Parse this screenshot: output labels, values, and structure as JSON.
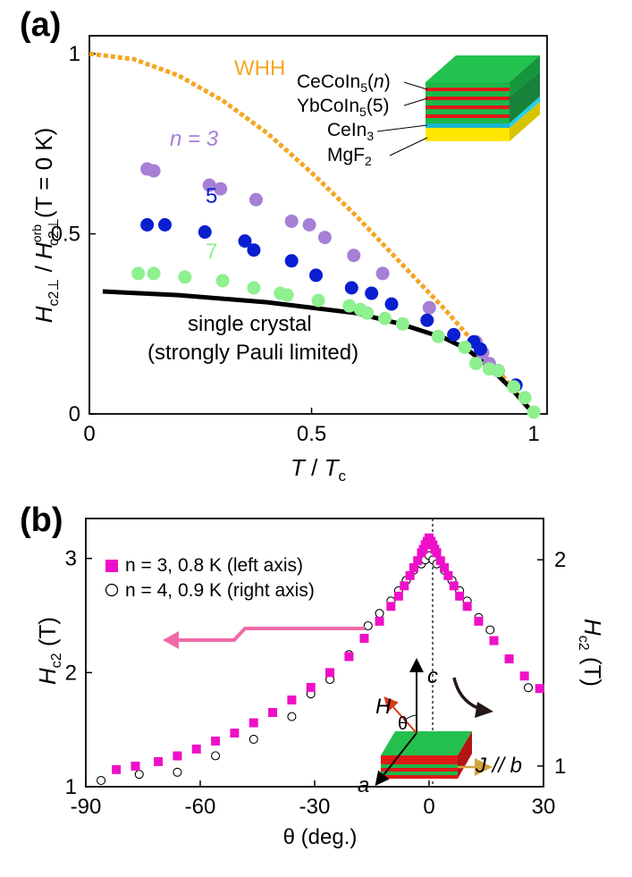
{
  "panels": {
    "a": {
      "label": "(a)",
      "ylabel_parts": [
        "H",
        "c2⊥",
        " / ",
        "H",
        "orb",
        "c2⊥",
        "(T = 0 K)"
      ],
      "xlabel_parts": [
        "T",
        " / ",
        "T",
        "c"
      ],
      "annotations": {
        "whh": "WHH",
        "n3": "n = 3",
        "n5": "5",
        "n7": "7",
        "single_crystal_line1": "single crystal",
        "single_crystal_line2": "(strongly Pauli limited)"
      },
      "inset_labels": {
        "cecoin5": "CeCoIn5(n)",
        "ybcoin5": "YbCoIn5(5)",
        "cein3": "CeIn3",
        "mgf2": "MgF2"
      }
    },
    "b": {
      "label": "(b)",
      "ylabel_left": "Hc2 (T)",
      "ylabel_right": "Hc2 (T)",
      "xlabel": "θ (deg.)",
      "legend": [
        "n = 3, 0.8 K (left axis)",
        "n = 4, 0.9 K (right axis)"
      ],
      "inset_labels": {
        "c": "c",
        "H": "H",
        "theta": "θ",
        "a": "a",
        "J": "J // b"
      }
    }
  },
  "colors": {
    "whh": "#f5a623",
    "n3": "#a67fd6",
    "n5": "#0a1fd0",
    "n7": "#8ef08e",
    "single_crystal": "#000000",
    "magenta": "#ee10c8",
    "green_layer": "#1cb64a",
    "red_layer": "#e01818",
    "cyan_layer": "#22d3ee",
    "yellow_layer": "#ffe600",
    "arrow_pink": "#f06aa8"
  },
  "chart_data": [
    {
      "type": "scatter",
      "title": "",
      "xlabel": "T / Tc",
      "ylabel": "Hc2⊥ / Hc2⊥orb(T = 0 K)",
      "xlim": [
        0,
        1.03
      ],
      "ylim": [
        0,
        1.05
      ],
      "xticks": [
        0,
        0.5,
        1
      ],
      "yticks": [
        0,
        0.5,
        1
      ],
      "xtick_labels": [
        "0",
        "0.5",
        "1"
      ],
      "ytick_labels": [
        "0",
        "0.5",
        "1"
      ],
      "series": [
        {
          "name": "WHH",
          "style": "dotted-line",
          "x": [
            0,
            0.1,
            0.2,
            0.3,
            0.4,
            0.5,
            0.6,
            0.7,
            0.8,
            0.9,
            0.95,
            1.0
          ],
          "y": [
            1.0,
            0.985,
            0.94,
            0.87,
            0.78,
            0.67,
            0.55,
            0.42,
            0.29,
            0.15,
            0.075,
            0.0
          ]
        },
        {
          "name": "single crystal (strongly Pauli limited)",
          "style": "solid-line",
          "x": [
            0.03,
            0.2,
            0.4,
            0.6,
            0.7,
            0.8,
            0.85,
            0.9,
            0.95,
            1.0
          ],
          "y": [
            0.34,
            0.33,
            0.31,
            0.28,
            0.25,
            0.21,
            0.18,
            0.13,
            0.07,
            0.0
          ]
        },
        {
          "name": "n = 3",
          "style": "points",
          "x": [
            0.13,
            0.145,
            0.27,
            0.295,
            0.375,
            0.455,
            0.495,
            0.53,
            0.595,
            0.66,
            0.765,
            0.87,
            0.885,
            0.9
          ],
          "y": [
            0.68,
            0.675,
            0.635,
            0.625,
            0.595,
            0.535,
            0.525,
            0.49,
            0.44,
            0.39,
            0.295,
            0.2,
            0.17,
            0.14
          ]
        },
        {
          "name": "n = 5",
          "style": "points",
          "x": [
            0.13,
            0.17,
            0.26,
            0.35,
            0.37,
            0.455,
            0.51,
            0.59,
            0.635,
            0.68,
            0.76,
            0.82,
            0.865,
            0.88,
            0.92,
            0.96
          ],
          "y": [
            0.525,
            0.525,
            0.505,
            0.48,
            0.455,
            0.425,
            0.385,
            0.35,
            0.335,
            0.305,
            0.26,
            0.22,
            0.2,
            0.18,
            0.12,
            0.08
          ]
        },
        {
          "name": "n = 7",
          "style": "points",
          "x": [
            0.11,
            0.145,
            0.215,
            0.3,
            0.37,
            0.43,
            0.445,
            0.515,
            0.585,
            0.61,
            0.625,
            0.665,
            0.705,
            0.785,
            0.845,
            0.87,
            0.9,
            0.92,
            0.955,
            0.98,
            1.0
          ],
          "y": [
            0.39,
            0.39,
            0.38,
            0.37,
            0.35,
            0.335,
            0.33,
            0.315,
            0.3,
            0.29,
            0.28,
            0.265,
            0.25,
            0.215,
            0.185,
            0.14,
            0.125,
            0.12,
            0.075,
            0.045,
            0.005
          ]
        }
      ]
    },
    {
      "type": "scatter",
      "title": "",
      "xlabel": "θ (deg.)",
      "ylabel": "Hc2 (T)",
      "ylabel_right": "Hc2 (T)",
      "xlim": [
        -90,
        30
      ],
      "ylim": [
        1,
        3.35
      ],
      "ylim_right": [
        0.9,
        2.2
      ],
      "xticks": [
        -90,
        -60,
        -30,
        0,
        30
      ],
      "xtick_labels": [
        "-90",
        "-60",
        "-30",
        "0",
        "30"
      ],
      "yticks": [
        1,
        2,
        3
      ],
      "ytick_labels": [
        "1",
        "2",
        "3"
      ],
      "yticks_right": [
        1,
        2
      ],
      "ytick_labels_right": [
        "1",
        "2"
      ],
      "series": [
        {
          "name": "n = 3, 0.8 K (left axis)",
          "axis": "left",
          "marker": "square",
          "x": [
            -82,
            -77,
            -71,
            -66,
            -61,
            -56,
            -51,
            -46,
            -41,
            -36,
            -31,
            -26,
            -21,
            -17,
            -13,
            -10,
            -8,
            -6.5,
            -5,
            -4,
            -3,
            -2,
            -1.5,
            -1,
            -0.5,
            0,
            0.5,
            1,
            1.5,
            2,
            3,
            4,
            5,
            6.5,
            8,
            10,
            13,
            17,
            21,
            25,
            29
          ],
          "y": [
            1.15,
            1.18,
            1.22,
            1.27,
            1.33,
            1.4,
            1.47,
            1.56,
            1.65,
            1.76,
            1.87,
            2.0,
            2.14,
            2.3,
            2.45,
            2.58,
            2.67,
            2.76,
            2.85,
            2.92,
            2.98,
            3.05,
            3.08,
            3.12,
            3.15,
            3.18,
            3.15,
            3.12,
            3.08,
            3.05,
            2.98,
            2.92,
            2.85,
            2.76,
            2.67,
            2.58,
            2.45,
            2.28,
            2.12,
            1.97,
            1.86
          ]
        },
        {
          "name": "n = 4, 0.9 K (right axis)",
          "axis": "right",
          "marker": "open-circle",
          "x": [
            -86,
            -76,
            -66,
            -56,
            -46,
            -36,
            -31,
            -26,
            -21,
            -16,
            -13,
            -10,
            -8,
            -6,
            -4,
            -2,
            -1,
            0,
            1,
            2,
            4,
            6,
            8,
            10,
            13,
            16,
            21,
            26
          ],
          "y": [
            0.93,
            0.96,
            0.97,
            1.05,
            1.13,
            1.24,
            1.35,
            1.42,
            1.54,
            1.68,
            1.74,
            1.8,
            1.85,
            1.9,
            1.95,
            1.98,
            2.0,
            2.02,
            2.0,
            1.98,
            1.95,
            1.9,
            1.85,
            1.8,
            1.72,
            1.66,
            1.52,
            1.38
          ]
        }
      ]
    }
  ]
}
